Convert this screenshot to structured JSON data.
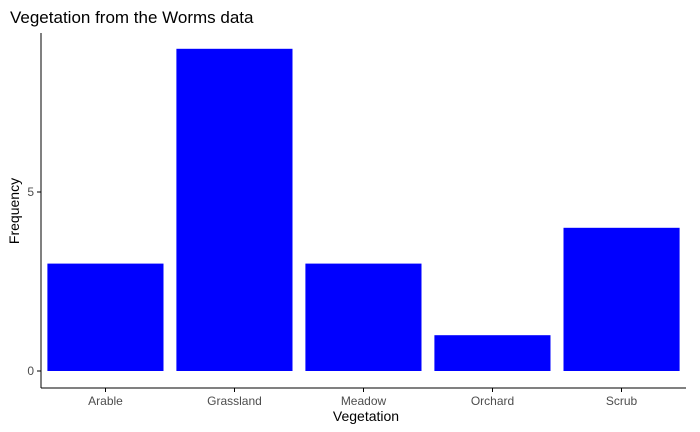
{
  "chart_data": {
    "type": "bar",
    "title": "Vegetation from the Worms data",
    "xlabel": "Vegetation",
    "ylabel": "Frequency",
    "categories": [
      "Arable",
      "Grassland",
      "Meadow",
      "Orchard",
      "Scrub"
    ],
    "values": [
      3,
      9,
      3,
      1,
      4
    ],
    "ylim": [
      0,
      9.45
    ],
    "yticks": [
      0,
      5
    ],
    "grid": false,
    "legend": "none",
    "bar_color": "#0000ff",
    "axis_color": "#000000",
    "tick_label_color": "#4d4d4d"
  }
}
